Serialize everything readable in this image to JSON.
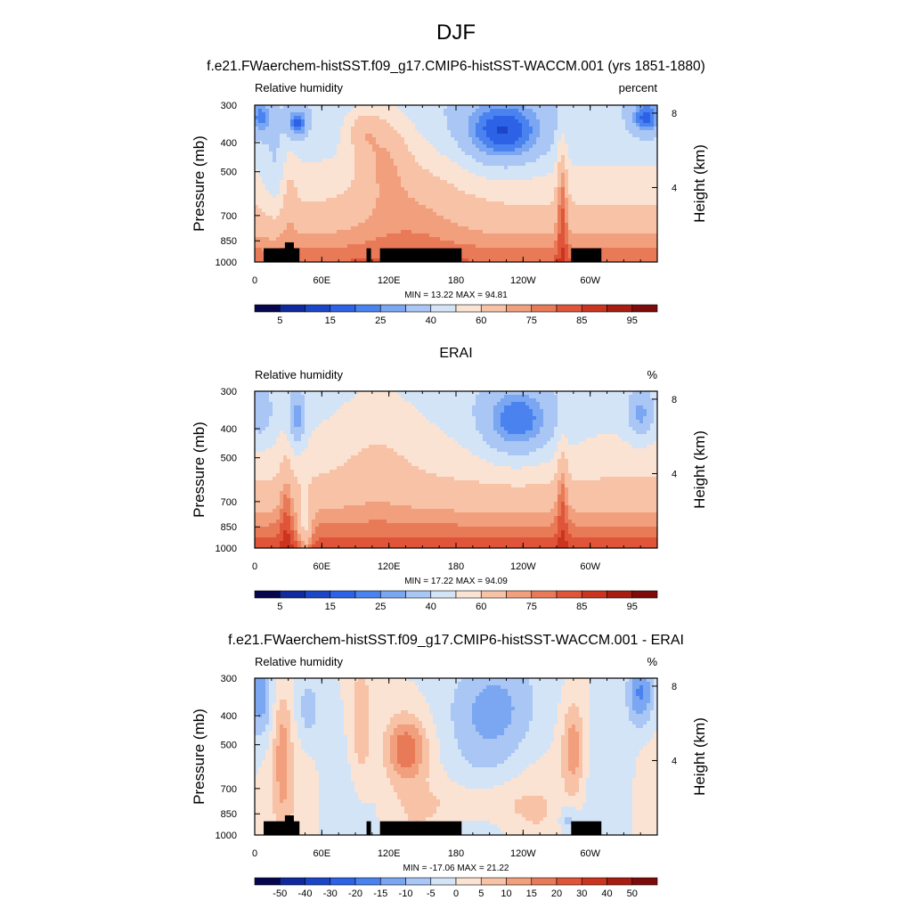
{
  "figure_title": "DJF",
  "colors": {
    "abs_scale": [
      "#06064f",
      "#102a9e",
      "#1c46c8",
      "#2d62e6",
      "#4a83f0",
      "#7aa6f2",
      "#a9c6f5",
      "#d3e4f7",
      "#fbe3d3",
      "#f7c2a6",
      "#f19f7d",
      "#e97a58",
      "#e0553a",
      "#cb3520",
      "#a81d12",
      "#7e0b0b"
    ],
    "diff_scale": [
      "#06064f",
      "#102a9e",
      "#1c46c8",
      "#2d62e6",
      "#4a83f0",
      "#7aa6f2",
      "#a9c6f5",
      "#d3e4f7",
      "#fbe3d3",
      "#f7c2a6",
      "#f19f7d",
      "#e97a58",
      "#e0553a",
      "#cb3520",
      "#a81d12",
      "#7e0b0b"
    ],
    "topography": "#000000"
  },
  "chart_data": [
    {
      "type": "heatmap",
      "title": "f.e21.FWaerchem-histSST.f09_g17.CMIP6-histSST-WACCM.001 (yrs 1851-1880)",
      "left_label": "Relative humidity",
      "right_label": "percent",
      "ylabel": "Pressure (mb)",
      "ylabel_right": "Height (km)",
      "yticks": [
        "300",
        "400",
        "500",
        "700",
        "850",
        "1000"
      ],
      "yticks_right": [
        "8",
        "4"
      ],
      "xticks": [
        "0",
        "60E",
        "120E",
        "180",
        "120W",
        "60W"
      ],
      "xlim": [
        0,
        360
      ],
      "ylim": [
        1000,
        300
      ],
      "stats": "MIN =  13.22  MAX =  94.81",
      "colorbar_labels": [
        "5",
        "15",
        "25",
        "40",
        "60",
        "75",
        "85",
        "95"
      ],
      "min": 13.22,
      "max": 94.81,
      "show_topography": true
    },
    {
      "type": "heatmap",
      "title": "ERAI",
      "left_label": "Relative humidity",
      "right_label": "%",
      "ylabel": "Pressure (mb)",
      "ylabel_right": "Height (km)",
      "yticks": [
        "300",
        "400",
        "500",
        "700",
        "850",
        "1000"
      ],
      "yticks_right": [
        "8",
        "4"
      ],
      "xticks": [
        "0",
        "60E",
        "120E",
        "180",
        "120W",
        "60W"
      ],
      "xlim": [
        0,
        360
      ],
      "ylim": [
        1000,
        300
      ],
      "stats": "MIN =  17.22  MAX =  94.09",
      "colorbar_labels": [
        "5",
        "15",
        "25",
        "40",
        "60",
        "75",
        "85",
        "95"
      ],
      "min": 17.22,
      "max": 94.09,
      "show_topography": false
    },
    {
      "type": "heatmap",
      "title": "f.e21.FWaerchem-histSST.f09_g17.CMIP6-histSST-WACCM.001 - ERAI",
      "left_label": "Relative humidity",
      "right_label": "%",
      "ylabel": "Pressure (mb)",
      "ylabel_right": "Height (km)",
      "yticks": [
        "300",
        "400",
        "500",
        "700",
        "850",
        "1000"
      ],
      "yticks_right": [
        "8",
        "4"
      ],
      "xticks": [
        "0",
        "60E",
        "120E",
        "180",
        "120W",
        "60W"
      ],
      "xlim": [
        0,
        360
      ],
      "ylim": [
        1000,
        300
      ],
      "stats": "MIN = -17.06  MAX =  21.22",
      "colorbar_labels": [
        "-50",
        "-40",
        "-30",
        "-20",
        "-15",
        "-10",
        "-5",
        "0",
        "5",
        "10",
        "15",
        "20",
        "30",
        "40",
        "50"
      ],
      "min": -17.06,
      "max": 21.22,
      "show_topography": true
    }
  ]
}
